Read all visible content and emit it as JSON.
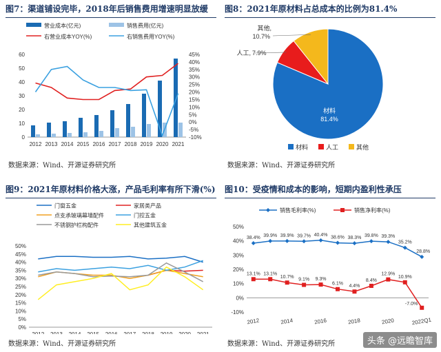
{
  "panels": {
    "p7": {
      "title": "图7：渠道铺设完毕，2018年后销售费用增速明显放缓",
      "source": "数据来源：Wind、开源证券研究所"
    },
    "p8": {
      "title": "图8：2021年原材料占总成本的比例为81.4%",
      "source": "数据来源：Wind、开源证券研究所"
    },
    "p9": {
      "title": "图9：2021年原材料价格大涨，产品毛利率有所下滑(%)",
      "source": "数据来源：Wind、开源证券研究所"
    },
    "p10": {
      "title": "图10：受疫情和成本的影响，短期内盈利性承压",
      "source": "数据来源：Wind、开源证券研究所"
    }
  },
  "watermark": "头条 @远瞻智库",
  "chart_data": [
    {
      "id": "fig7",
      "type": "bar",
      "categories": [
        "2012",
        "2013",
        "2014",
        "2015",
        "2016",
        "2017",
        "2018",
        "2019",
        "2020",
        "2021"
      ],
      "series": [
        {
          "name": "营业成本(亿元)",
          "axis": "left",
          "kind": "bar",
          "color": "#1a6bb3",
          "values": [
            8.5,
            10.5,
            11.5,
            14,
            16,
            19.5,
            24,
            31.5,
            41,
            57
          ]
        },
        {
          "name": "销售费用(亿元)",
          "axis": "left",
          "kind": "bar",
          "color": "#9dc3e6",
          "values": [
            2,
            2.5,
            3,
            3.5,
            4.5,
            6.5,
            7.5,
            9.5,
            10.5,
            10.5
          ]
        },
        {
          "name": "右营业成本YOY(%)",
          "axis": "right",
          "kind": "line",
          "color": "#e02020",
          "values": [
            26,
            23,
            16,
            15,
            15,
            21,
            22,
            30,
            31,
            39
          ]
        },
        {
          "name": "右销售费用YOY(%)",
          "axis": "right",
          "kind": "line",
          "color": "#3aa0e0",
          "values": [
            20,
            35,
            37,
            28,
            23,
            23,
            21,
            21.5,
            -9,
            19
          ]
        }
      ],
      "ylim_left": [
        0,
        60
      ],
      "yticks_left": [
        "0",
        "10",
        "20",
        "30",
        "40",
        "50",
        "60"
      ],
      "ylim_right": [
        -10,
        45
      ],
      "yticks_right": [
        "-10%",
        "-5%",
        "0%",
        "5%",
        "10%",
        "15%",
        "20%",
        "25%",
        "30%",
        "35%",
        "40%",
        "45%"
      ]
    },
    {
      "id": "fig8",
      "type": "pie",
      "slices": [
        {
          "name": "材料",
          "value": 81.4,
          "label": "81.4%",
          "color": "#1a6fc4"
        },
        {
          "name": "人工",
          "value": 7.9,
          "label": "7.9%",
          "color": "#e81c1c"
        },
        {
          "name": "其他",
          "value": 10.7,
          "label": "10.7%",
          "color": "#f4b81c"
        }
      ],
      "legend": "bottom"
    },
    {
      "id": "fig9",
      "type": "line",
      "x": [
        "2012",
        "2013",
        "2014",
        "2015",
        "2016",
        "2017",
        "2018",
        "2019",
        "2020",
        "2021"
      ],
      "series": [
        {
          "name": "门窗五金",
          "color": "#1a6fc4",
          "values": [
            42,
            43.5,
            43.5,
            43,
            43,
            43.5,
            42,
            42.5,
            43.5,
            40
          ]
        },
        {
          "name": "家居类产品",
          "color": "#e02020",
          "values": [
            null,
            null,
            null,
            null,
            null,
            null,
            32,
            35,
            34.5,
            35
          ]
        },
        {
          "name": "点支承玻璃幕墙配件",
          "color": "#f0a020",
          "values": [
            31,
            34,
            33,
            32,
            32,
            30,
            32,
            35,
            33,
            31
          ]
        },
        {
          "name": "门控五金",
          "color": "#3aa0e0",
          "values": [
            34,
            36,
            35,
            36,
            37,
            36,
            38,
            35,
            37,
            41
          ]
        },
        {
          "name": "不锈钢护栏构配件",
          "color": "#999999",
          "values": [
            32,
            34,
            33,
            31,
            31.5,
            31,
            32,
            39.5,
            34,
            28
          ]
        },
        {
          "name": "其他建筑五金",
          "color": "#ffee22",
          "values": [
            17,
            26,
            28,
            30,
            33,
            23,
            26,
            37,
            31,
            23
          ]
        }
      ],
      "ylim": [
        0,
        50
      ],
      "yticks": [
        "0%",
        "5%",
        "10%",
        "15%",
        "20%",
        "25%",
        "30%",
        "35%",
        "40%",
        "45%",
        "50%"
      ]
    },
    {
      "id": "fig10",
      "type": "line",
      "x": [
        "2012",
        "2013",
        "2014",
        "2015",
        "2016",
        "2017",
        "2018",
        "2019",
        "2020",
        "2021",
        "2022Q1"
      ],
      "xticks": [
        "2012",
        "2014",
        "2016",
        "2018",
        "2020",
        "2022Q1"
      ],
      "series": [
        {
          "name": "销售毛利率(%)",
          "color": "#1a6fc4",
          "marker": "diamond",
          "values": [
            38.4,
            39.9,
            39.9,
            39.7,
            40.4,
            38.6,
            38.3,
            39.8,
            39.3,
            35.2,
            28.8
          ],
          "labels": [
            "38.4%",
            "39.9%",
            "39.9%",
            "39.7%",
            "40.4%",
            "38.6%",
            "38.3%",
            "39.8%",
            "39.3%",
            "35.2%",
            "28.8%"
          ]
        },
        {
          "name": "销售净利率(%)",
          "color": "#e02020",
          "marker": "square",
          "values": [
            13.1,
            13.1,
            10.7,
            9.1,
            9.3,
            6.1,
            4.4,
            8.4,
            12.9,
            10.9,
            -7.0
          ],
          "labels": [
            "13.1%",
            "13.1%",
            "10.7%",
            "9.1%",
            "9.3%",
            "6.1%",
            "4.4%",
            "8.4%",
            "12.9%",
            "10.9%",
            "-7.0%"
          ]
        }
      ],
      "ylim": [
        -10,
        50
      ],
      "yticks": [
        "-10%",
        "0%",
        "10%",
        "20%",
        "30%",
        "40%",
        "50%"
      ]
    }
  ]
}
